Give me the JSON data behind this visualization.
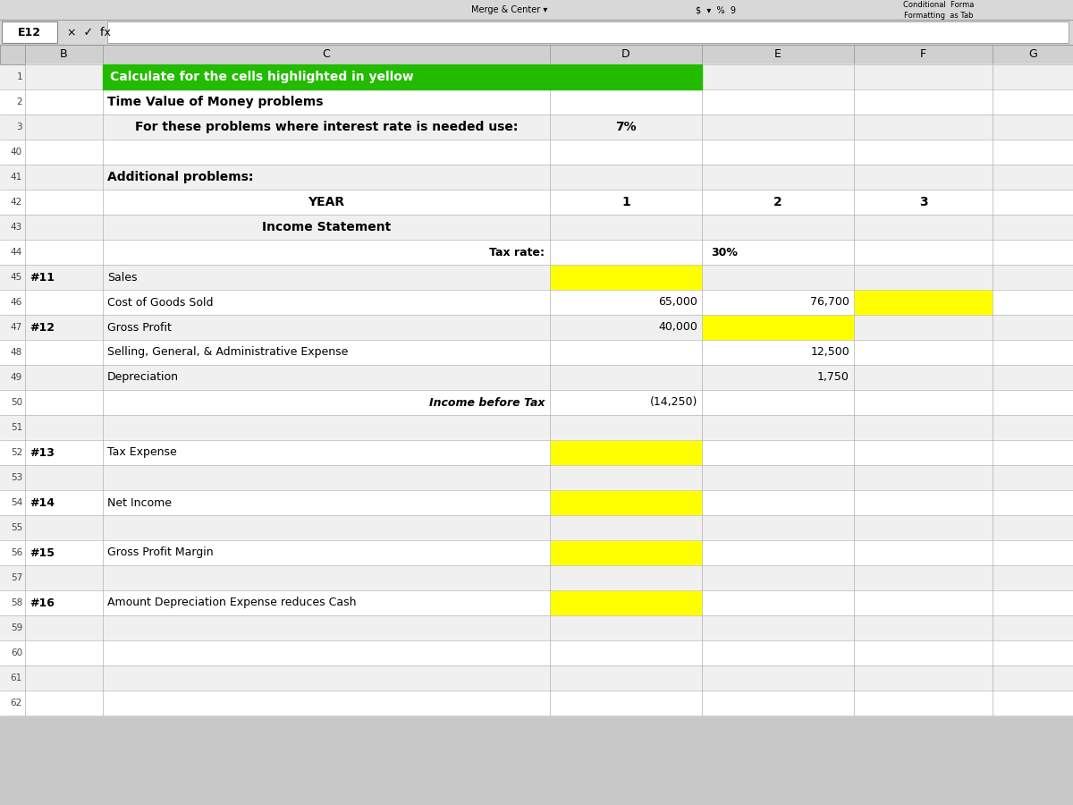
{
  "fig_width": 12.0,
  "fig_height": 9.0,
  "bg_color": "#c8c8c8",
  "toolbar_bg": "#d8d8d8",
  "cell_bg": "#e8e8e8",
  "white": "#ffffff",
  "green_header_bg": "#22bb00",
  "yellow_cell": "#ffff00",
  "col_header_bg": "#d0d0d0",
  "rows": [
    {
      "rl": "1",
      "nl": "",
      "cb": "",
      "cc": "Calculate for the cells highlighted in yellow",
      "cd": "",
      "ce": "",
      "cf": "",
      "cg": "",
      "style": "green_header"
    },
    {
      "rl": "2",
      "nl": "",
      "cb": "",
      "cc": "Time Value of Money problems",
      "cd": "",
      "ce": "",
      "cf": "",
      "cg": "",
      "style": "bold_left"
    },
    {
      "rl": "3",
      "nl": "",
      "cb": "",
      "cc": "For these problems where interest rate is needed use:",
      "cd": "7%",
      "ce": "",
      "cf": "",
      "cg": "",
      "style": "bold_center"
    },
    {
      "rl": "40",
      "nl": "",
      "cb": "",
      "cc": "",
      "cd": "",
      "ce": "",
      "cf": "",
      "cg": "",
      "style": "normal"
    },
    {
      "rl": "41",
      "nl": "",
      "cb": "",
      "cc": "Additional problems:",
      "cd": "",
      "ce": "",
      "cf": "",
      "cg": "",
      "style": "bold_left"
    },
    {
      "rl": "42",
      "nl": "",
      "cb": "",
      "cc": "YEAR",
      "cd": "1",
      "ce": "2",
      "cf": "3",
      "cg": "",
      "style": "bold_center"
    },
    {
      "rl": "43",
      "nl": "",
      "cb": "",
      "cc": "Income Statement",
      "cd": "",
      "ce": "",
      "cf": "",
      "cg": "",
      "style": "bold_center"
    },
    {
      "rl": "44",
      "nl": "",
      "cb": "",
      "cc": "",
      "cd": "Tax rate:",
      "ce": "30%",
      "cf": "",
      "cg": "",
      "style": "tax_rate"
    },
    {
      "rl": "45",
      "nl": "#11",
      "cb": "Sales",
      "cc": "",
      "cd": "YELLOW",
      "ce": "",
      "cf": "",
      "cg": "",
      "style": "normal"
    },
    {
      "rl": "46",
      "nl": "",
      "cb": "Cost of Goods Sold",
      "cc": "",
      "cd": "65,000",
      "ce": "76,700",
      "cf": "YELLOW",
      "cg": "",
      "style": "normal"
    },
    {
      "rl": "47",
      "nl": "#12",
      "cb": "Gross Profit",
      "cc": "",
      "cd": "40,000",
      "ce": "YELLOW",
      "cf": "",
      "cg": "",
      "style": "normal"
    },
    {
      "rl": "48",
      "nl": "",
      "cb": "Selling, General, & Administrative Expense",
      "cc": "",
      "cd": "",
      "ce": "12,500",
      "cf": "",
      "cg": "",
      "style": "normal"
    },
    {
      "rl": "49",
      "nl": "",
      "cb": "Depreciation",
      "cc": "",
      "cd": "",
      "ce": "1,750",
      "cf": "",
      "cg": "",
      "style": "normal"
    },
    {
      "rl": "50",
      "nl": "",
      "cb": "",
      "cc": "Income before Tax",
      "cd": "(14,250)",
      "ce": "",
      "cf": "",
      "cg": "",
      "style": "italic"
    },
    {
      "rl": "51",
      "nl": "",
      "cb": "",
      "cc": "",
      "cd": "",
      "ce": "",
      "cf": "",
      "cg": "",
      "style": "normal"
    },
    {
      "rl": "52",
      "nl": "#13",
      "cb": "Tax Expense",
      "cc": "",
      "cd": "YELLOW",
      "ce": "",
      "cf": "",
      "cg": "",
      "style": "normal"
    },
    {
      "rl": "53",
      "nl": "",
      "cb": "",
      "cc": "",
      "cd": "",
      "ce": "",
      "cf": "",
      "cg": "",
      "style": "normal"
    },
    {
      "rl": "54",
      "nl": "#14",
      "cb": "Net Income",
      "cc": "",
      "cd": "YELLOW",
      "ce": "",
      "cf": "",
      "cg": "",
      "style": "normal"
    },
    {
      "rl": "55",
      "nl": "",
      "cb": "",
      "cc": "",
      "cd": "",
      "ce": "",
      "cf": "",
      "cg": "",
      "style": "normal"
    },
    {
      "rl": "56",
      "nl": "#15",
      "cb": "Gross Profit Margin",
      "cc": "",
      "cd": "YELLOW",
      "ce": "",
      "cf": "",
      "cg": "",
      "style": "normal"
    },
    {
      "rl": "57",
      "nl": "",
      "cb": "",
      "cc": "",
      "cd": "",
      "ce": "",
      "cf": "",
      "cg": "",
      "style": "normal"
    },
    {
      "rl": "58",
      "nl": "#16",
      "cb": "Amount Depreciation Expense reduces Cash",
      "cc": "",
      "cd": "YELLOW",
      "ce": "",
      "cf": "",
      "cg": "",
      "style": "normal"
    },
    {
      "rl": "59",
      "nl": "",
      "cb": "",
      "cc": "",
      "cd": "",
      "ce": "",
      "cf": "",
      "cg": "",
      "style": "normal"
    },
    {
      "rl": "60",
      "nl": "",
      "cb": "",
      "cc": "",
      "cd": "",
      "ce": "",
      "cf": "",
      "cg": "",
      "style": "normal"
    },
    {
      "rl": "61",
      "nl": "",
      "cb": "",
      "cc": "",
      "cd": "",
      "ce": "",
      "cf": "",
      "cg": "",
      "style": "normal"
    },
    {
      "rl": "62",
      "nl": "",
      "cb": "",
      "cc": "",
      "cd": "",
      "ce": "",
      "cf": "",
      "cg": "",
      "style": "normal"
    }
  ]
}
